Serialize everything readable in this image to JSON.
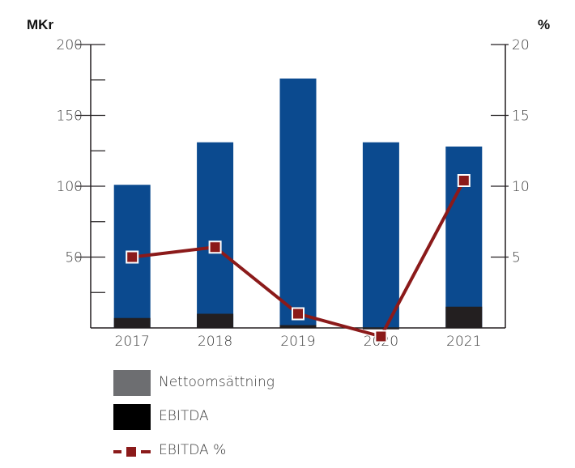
{
  "chart_data": {
    "type": "bar",
    "categories": [
      "2017",
      "2018",
      "2019",
      "2020",
      "2021"
    ],
    "left_axis_unit": "MKr",
    "right_axis_unit": "%",
    "ylim_left": [
      0,
      200
    ],
    "ylim_right": [
      0,
      20
    ],
    "left_ticks": [
      "200",
      "150",
      "100",
      "50"
    ],
    "right_ticks": [
      "20",
      "15",
      "10",
      "5"
    ],
    "series": [
      {
        "name": "Nettoomsättning",
        "type": "bar",
        "axis": "left",
        "color": "#0b4a8f",
        "values": [
          101,
          131,
          176,
          131,
          128
        ]
      },
      {
        "name": "EBITDA",
        "type": "bar",
        "axis": "left",
        "color": "#231f20",
        "values": [
          7,
          10,
          2,
          -1,
          15
        ]
      },
      {
        "name": "EBITDA %",
        "type": "line",
        "axis": "right",
        "color": "#8b1a1a",
        "values": [
          5.0,
          5.7,
          1.0,
          -0.6,
          10.4
        ]
      }
    ],
    "legend": {
      "position": "bottom-left",
      "items": [
        {
          "label": "Nettoomsättning",
          "swatch": "#6d6e71"
        },
        {
          "label": "EBITDA",
          "swatch": "#000000"
        },
        {
          "label": "EBITDA %",
          "swatch": "#8b1a1a"
        }
      ]
    },
    "grid": false
  }
}
